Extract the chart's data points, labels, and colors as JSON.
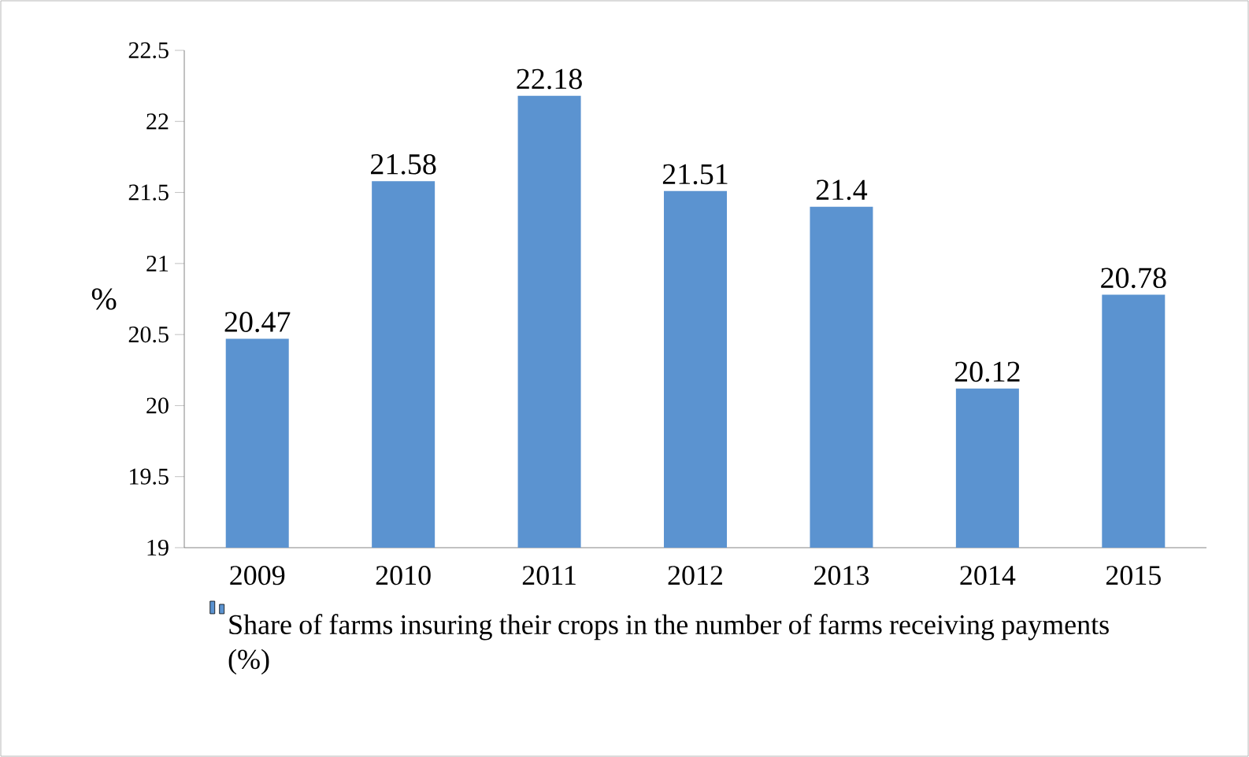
{
  "chart_data": {
    "type": "bar",
    "categories": [
      "2009",
      "2010",
      "2011",
      "2012",
      "2013",
      "2014",
      "2015"
    ],
    "series": [
      {
        "name": "Share of farms insuring their crops in the number of farms receiving payments (%)",
        "color": "#5b93d0",
        "values": [
          20.47,
          21.58,
          22.18,
          21.51,
          21.4,
          20.12,
          20.78
        ]
      }
    ],
    "ylabel": "%",
    "ylim": [
      19,
      22.5
    ],
    "yticks": [
      19,
      19.5,
      20,
      20.5,
      21,
      21.5,
      22,
      22.5
    ],
    "data_labels": true,
    "legend": "bottom",
    "grid": false
  }
}
